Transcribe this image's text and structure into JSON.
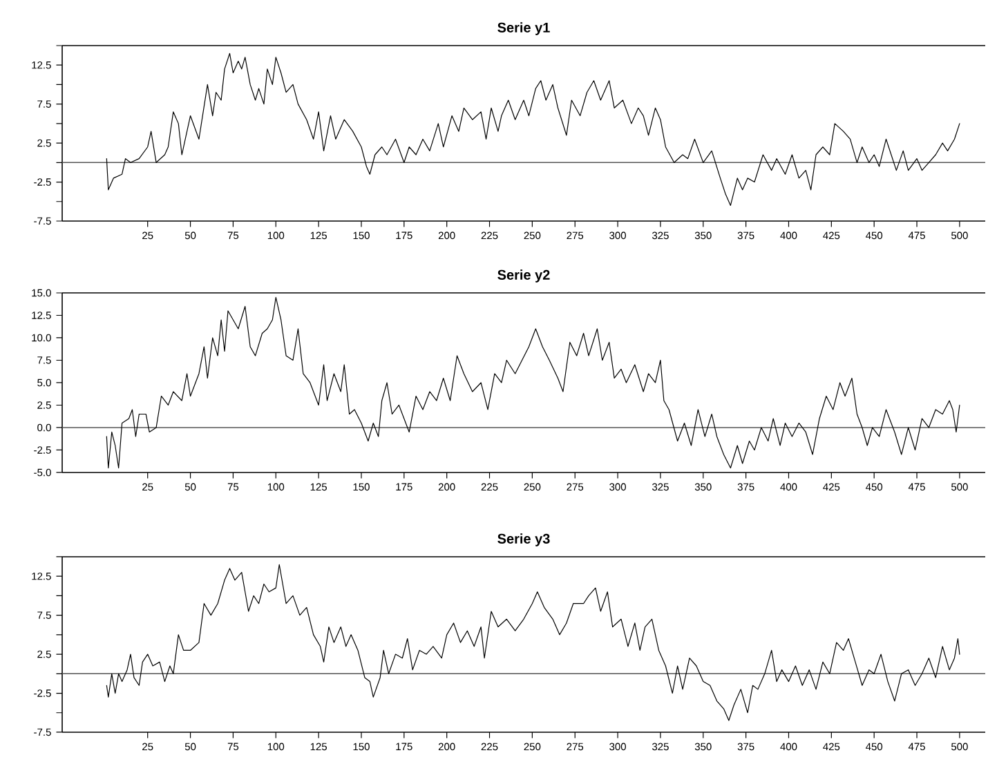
{
  "chart_data": [
    {
      "type": "line",
      "title": "Serie y1",
      "color": "#000000",
      "xlim": [
        -25,
        515
      ],
      "xticks": [
        25,
        50,
        75,
        100,
        125,
        150,
        175,
        200,
        225,
        250,
        275,
        300,
        325,
        350,
        375,
        400,
        425,
        450,
        475,
        500
      ],
      "ylim": [
        -7.5,
        15
      ],
      "yticks": [
        -7.5,
        {
          "value": -5,
          "label": null
        },
        -2.5,
        {
          "value": 0,
          "label": null
        },
        2.5,
        {
          "value": 5,
          "label": null
        },
        7.5,
        {
          "value": 10,
          "label": null
        },
        12.5,
        {
          "value": 15,
          "label": null
        }
      ],
      "ref_lines": [
        {
          "axis": "y",
          "value": 0
        }
      ],
      "x": [
        1,
        2,
        5,
        10,
        12,
        15,
        20,
        25,
        27,
        30,
        35,
        37,
        40,
        43,
        45,
        50,
        55,
        60,
        63,
        65,
        68,
        70,
        73,
        75,
        78,
        80,
        82,
        85,
        88,
        90,
        93,
        95,
        98,
        100,
        103,
        106,
        110,
        113,
        118,
        122,
        125,
        128,
        132,
        135,
        140,
        145,
        150,
        153,
        155,
        158,
        162,
        165,
        170,
        175,
        178,
        182,
        186,
        190,
        195,
        198,
        203,
        207,
        210,
        215,
        220,
        223,
        226,
        230,
        232,
        236,
        240,
        245,
        248,
        252,
        255,
        258,
        262,
        265,
        270,
        273,
        278,
        282,
        286,
        290,
        295,
        298,
        303,
        308,
        312,
        315,
        318,
        322,
        325,
        328,
        333,
        338,
        341,
        345,
        350,
        355,
        360,
        363,
        366,
        370,
        373,
        376,
        380,
        385,
        390,
        393,
        398,
        402,
        406,
        410,
        413,
        416,
        420,
        424,
        427,
        432,
        436,
        440,
        443,
        447,
        450,
        453,
        457,
        460,
        463,
        467,
        470,
        475,
        478,
        482,
        486,
        490,
        493,
        497,
        500
      ],
      "values": [
        0.5,
        -3.5,
        -2,
        -1.5,
        0.5,
        0,
        0.5,
        2,
        4,
        0,
        1,
        2,
        6.5,
        5,
        1,
        6,
        3,
        10,
        6,
        9,
        8,
        12,
        14,
        11.5,
        13,
        12,
        13.5,
        10,
        8,
        9.5,
        7.5,
        12,
        10,
        13.5,
        11.5,
        9,
        10,
        7.5,
        5.5,
        3,
        6.5,
        1.5,
        6,
        3,
        5.5,
        4,
        2,
        -0.5,
        -1.5,
        1,
        2,
        1,
        3,
        0,
        2,
        1,
        3,
        1.5,
        5,
        2,
        6,
        4,
        7,
        5.5,
        6.5,
        3,
        7,
        4,
        6,
        8,
        5.5,
        8,
        6,
        9.5,
        10.5,
        8,
        10,
        7,
        3.5,
        8,
        6,
        9,
        10.5,
        8,
        10.5,
        7,
        8,
        5,
        7,
        6,
        3.5,
        7,
        5.5,
        2,
        0,
        1,
        0.5,
        3,
        0,
        1.5,
        -2,
        -4,
        -5.5,
        -2,
        -3.5,
        -2,
        -2.5,
        1,
        -1,
        0.5,
        -1.5,
        1,
        -2,
        -1,
        -3.5,
        1,
        2,
        1,
        5,
        4,
        3,
        0,
        2,
        0,
        1,
        -0.5,
        3,
        1,
        -1,
        1.5,
        -1,
        0.5,
        -1,
        0,
        1,
        2.5,
        1.5,
        3,
        5
      ]
    },
    {
      "type": "line",
      "title": "Serie y2",
      "color": "#000000",
      "xlim": [
        -25,
        515
      ],
      "xticks": [
        25,
        50,
        75,
        100,
        125,
        150,
        175,
        200,
        225,
        250,
        275,
        300,
        325,
        350,
        375,
        400,
        425,
        450,
        475,
        500
      ],
      "ylim": [
        -5,
        15
      ],
      "yticks": [
        {
          "value": -5,
          "label": "-5.0"
        },
        -2.5,
        {
          "value": 0,
          "label": "0.0"
        },
        2.5,
        {
          "value": 5,
          "label": "5.0"
        },
        7.5,
        {
          "value": 10,
          "label": "10.0"
        },
        12.5,
        {
          "value": 15,
          "label": "15.0"
        }
      ],
      "ref_lines": [
        {
          "axis": "y",
          "value": 0
        }
      ],
      "x": [
        1,
        2,
        4,
        6,
        8,
        10,
        14,
        16,
        18,
        20,
        24,
        26,
        30,
        33,
        37,
        40,
        45,
        48,
        50,
        55,
        58,
        60,
        63,
        66,
        68,
        70,
        72,
        75,
        78,
        82,
        85,
        88,
        92,
        95,
        98,
        100,
        103,
        106,
        110,
        113,
        116,
        120,
        125,
        128,
        130,
        134,
        138,
        140,
        143,
        146,
        150,
        154,
        157,
        160,
        162,
        165,
        168,
        172,
        175,
        178,
        182,
        186,
        190,
        194,
        198,
        202,
        206,
        210,
        215,
        220,
        224,
        228,
        232,
        235,
        240,
        244,
        248,
        252,
        256,
        260,
        265,
        268,
        272,
        276,
        280,
        283,
        288,
        291,
        295,
        298,
        302,
        305,
        310,
        315,
        318,
        322,
        325,
        327,
        330,
        335,
        339,
        343,
        347,
        351,
        355,
        358,
        362,
        366,
        370,
        373,
        377,
        380,
        384,
        388,
        391,
        395,
        398,
        402,
        406,
        410,
        414,
        418,
        422,
        426,
        430,
        433,
        437,
        440,
        443,
        446,
        449,
        453,
        457,
        462,
        466,
        470,
        474,
        478,
        482,
        486,
        490,
        494,
        496,
        498,
        500
      ],
      "values": [
        -1,
        -4.5,
        -0.5,
        -2,
        -4.5,
        0.5,
        1,
        2,
        -1,
        1.5,
        1.5,
        -0.5,
        0,
        3.5,
        2.5,
        4,
        3,
        6,
        3.5,
        6,
        9,
        5.5,
        10,
        8,
        12,
        8.5,
        13,
        12,
        11,
        13.5,
        9,
        8,
        10.5,
        11,
        12,
        14.5,
        12,
        8,
        7.5,
        11,
        6,
        5,
        2.5,
        7,
        3,
        6,
        4,
        7,
        1.5,
        2,
        0.5,
        -1.5,
        0.5,
        -1,
        3,
        5,
        1.5,
        2.5,
        1,
        -0.5,
        3.5,
        2,
        4,
        3,
        5.5,
        3,
        8,
        6,
        4,
        5,
        2,
        6,
        5,
        7.5,
        6,
        7.5,
        9,
        11,
        9,
        7.5,
        5.5,
        4,
        9.5,
        8,
        10.5,
        8,
        11,
        7.5,
        9.5,
        5.5,
        6.5,
        5,
        7,
        4,
        6,
        5,
        7.5,
        3,
        2,
        -1.5,
        0.5,
        -2,
        2,
        -1,
        1.5,
        -1,
        -3,
        -4.5,
        -2,
        -4,
        -1.5,
        -2.5,
        0,
        -1.5,
        1,
        -2,
        0.5,
        -1,
        0.5,
        -0.5,
        -3,
        1,
        3.5,
        2,
        5,
        3.5,
        5.5,
        1.5,
        0,
        -2,
        0,
        -1,
        2,
        -0.5,
        -3,
        0,
        -2.5,
        1,
        0,
        2,
        1.5,
        3,
        2,
        -0.5,
        2.5
      ]
    },
    {
      "type": "line",
      "title": "Serie y3",
      "color": "#000000",
      "xlim": [
        -25,
        515
      ],
      "xticks": [
        25,
        50,
        75,
        100,
        125,
        150,
        175,
        200,
        225,
        250,
        275,
        300,
        325,
        350,
        375,
        400,
        425,
        450,
        475,
        500
      ],
      "ylim": [
        -7.5,
        15
      ],
      "yticks": [
        -7.5,
        {
          "value": -5,
          "label": null
        },
        -2.5,
        {
          "value": 0,
          "label": null
        },
        2.5,
        {
          "value": 5,
          "label": null
        },
        7.5,
        {
          "value": 10,
          "label": null
        },
        12.5,
        {
          "value": 15,
          "label": null
        }
      ],
      "ref_lines": [
        {
          "axis": "y",
          "value": 0
        }
      ],
      "x": [
        1,
        2,
        4,
        6,
        8,
        10,
        13,
        15,
        17,
        20,
        22,
        25,
        28,
        32,
        35,
        38,
        40,
        43,
        46,
        50,
        55,
        58,
        62,
        66,
        70,
        73,
        76,
        80,
        84,
        87,
        90,
        93,
        96,
        100,
        102,
        106,
        110,
        114,
        118,
        122,
        126,
        128,
        131,
        134,
        138,
        141,
        144,
        148,
        152,
        155,
        157,
        161,
        163,
        166,
        170,
        174,
        177,
        180,
        184,
        188,
        192,
        197,
        200,
        204,
        208,
        212,
        216,
        220,
        222,
        226,
        230,
        235,
        240,
        245,
        250,
        253,
        257,
        262,
        266,
        270,
        274,
        280,
        283,
        287,
        290,
        294,
        297,
        302,
        306,
        310,
        313,
        316,
        320,
        324,
        328,
        332,
        335,
        338,
        342,
        346,
        350,
        354,
        358,
        362,
        365,
        368,
        372,
        376,
        379,
        382,
        386,
        390,
        393,
        396,
        400,
        404,
        408,
        412,
        416,
        420,
        424,
        428,
        432,
        435,
        439,
        443,
        447,
        450,
        454,
        458,
        462,
        466,
        470,
        474,
        478,
        482,
        486,
        490,
        494,
        497,
        499,
        500
      ],
      "values": [
        -1.5,
        -3,
        0,
        -2.5,
        0,
        -1,
        0.5,
        2.5,
        -0.5,
        -1.5,
        1.5,
        2.5,
        1,
        1.5,
        -1,
        1,
        0,
        5,
        3,
        3,
        4,
        9,
        7.5,
        9,
        12,
        13.5,
        12,
        13,
        8,
        10,
        9,
        11.5,
        10.5,
        11,
        14,
        9,
        10,
        7.5,
        8.5,
        5,
        3.5,
        1.5,
        6,
        4,
        6,
        3.5,
        5,
        3,
        -0.5,
        -1,
        -3,
        -0.5,
        3,
        0,
        2.5,
        2,
        4.5,
        0.5,
        3,
        2.5,
        3.5,
        2,
        5,
        6.5,
        4,
        5.5,
        3.5,
        6,
        2,
        8,
        6,
        7,
        5.5,
        7,
        9,
        10.5,
        8.5,
        7,
        5,
        6.5,
        9,
        9,
        10,
        11,
        8,
        10.5,
        6,
        7,
        3.5,
        6.5,
        3,
        6,
        7,
        3,
        1,
        -2.5,
        1,
        -2,
        2,
        1,
        -1,
        -1.5,
        -3.5,
        -4.5,
        -6,
        -4,
        -2,
        -5,
        -1.5,
        -2,
        0,
        3,
        -1,
        0.5,
        -1,
        1,
        -1.5,
        0.5,
        -2,
        1.5,
        0,
        4,
        3,
        4.5,
        1.5,
        -1.5,
        0.5,
        0,
        2.5,
        -1,
        -3.5,
        0,
        0.5,
        -1.5,
        0,
        2,
        -0.5,
        3.5,
        0.5,
        2,
        4.5,
        2.5
      ]
    }
  ]
}
